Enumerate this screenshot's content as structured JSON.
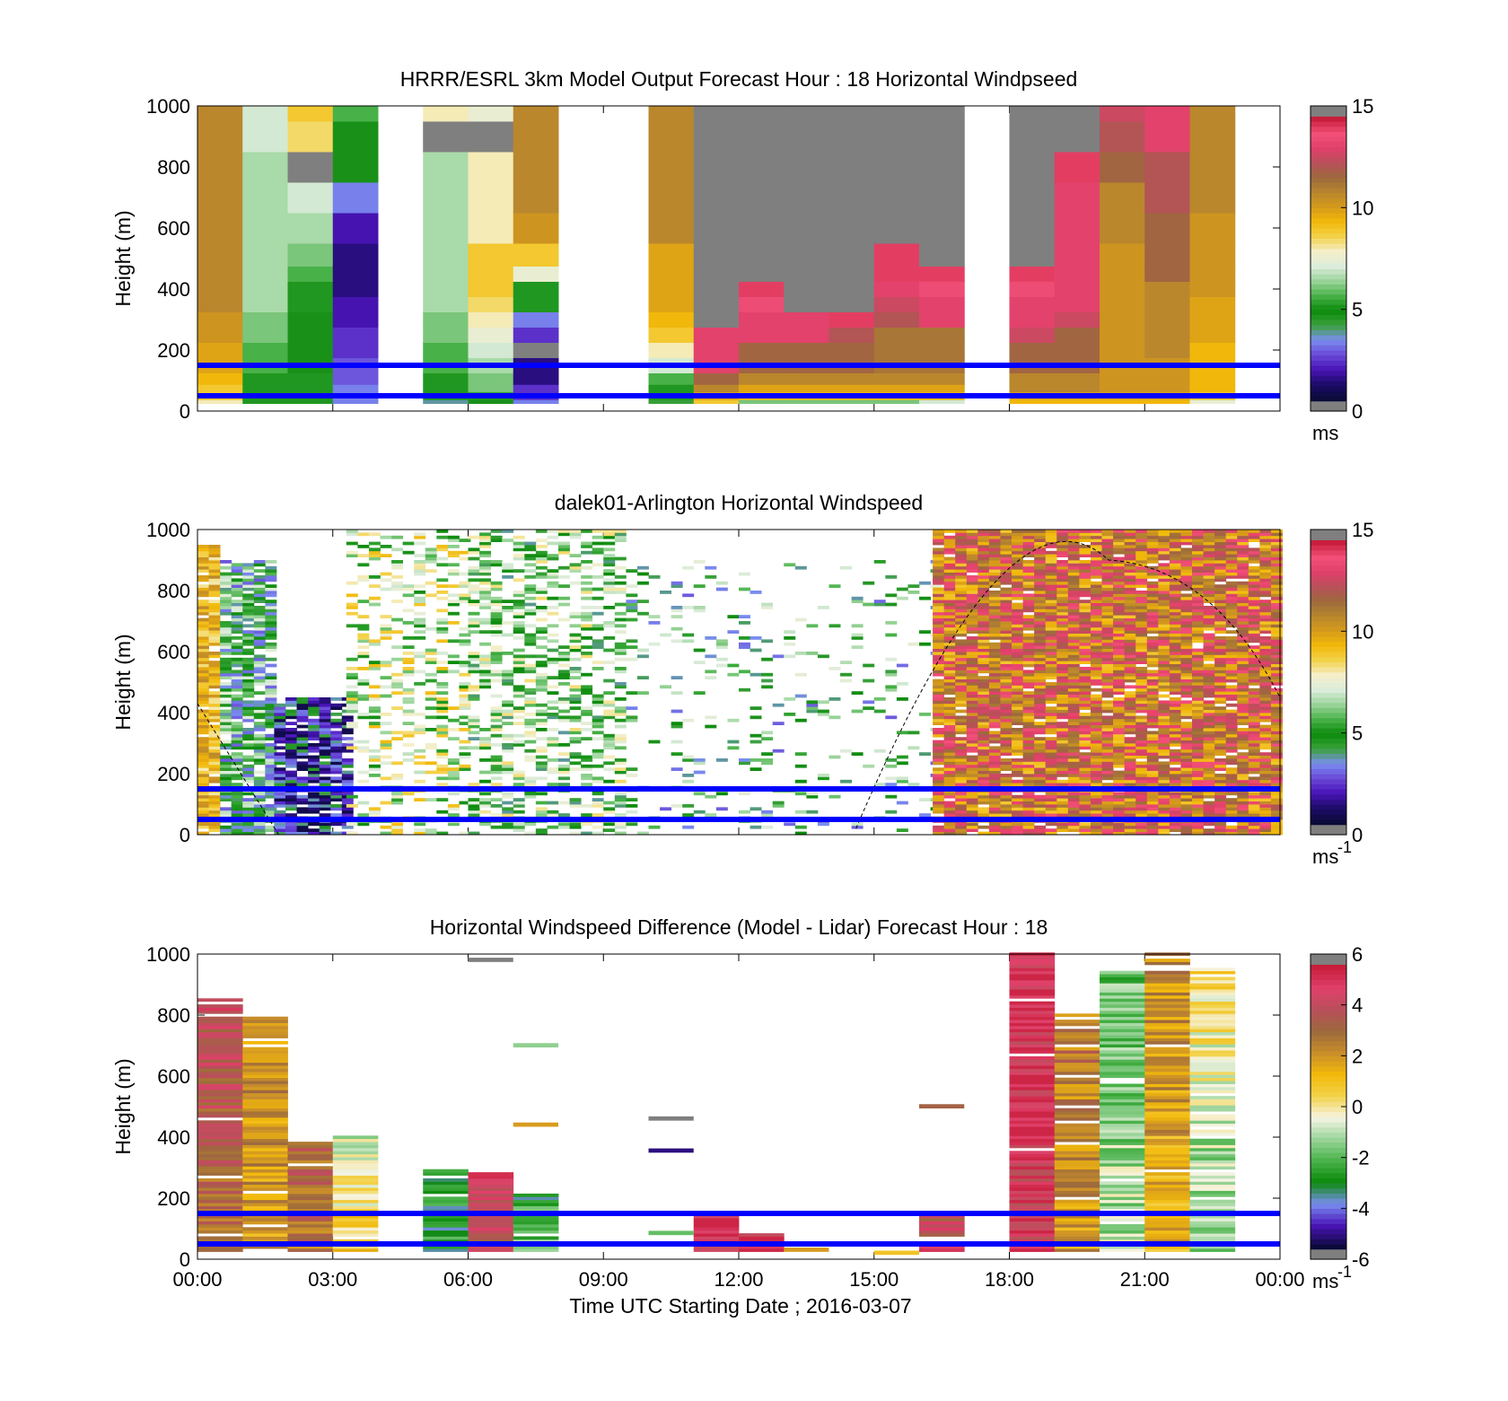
{
  "figure": {
    "xlabel": "Time UTC  Starting Date ; 2016-03-07",
    "x_tick_labels": [
      "00:00",
      "03:00",
      "06:00",
      "09:00",
      "12:00",
      "15:00",
      "18:00",
      "21:00",
      "00:00"
    ],
    "x_ticks_hours": [
      0,
      3,
      6,
      9,
      12,
      15,
      18,
      21,
      24
    ],
    "reference_lines_color": "#0000ff",
    "reference_lines_height_m": [
      50,
      150
    ],
    "colormap_windspeed": [
      "#7f7f7f",
      "#0b0a3a",
      "#1d0c6a",
      "#4a14b8",
      "#6a4ad8",
      "#7a8ef0",
      "#3aa13a",
      "#0b8a0b",
      "#4ab24a",
      "#9ad49a",
      "#dcecdc",
      "#f5efc8",
      "#f3d24a",
      "#f2b90a",
      "#d69a1a",
      "#b8862e",
      "#9c6a3c",
      "#b8505a",
      "#e0406a",
      "#f25078",
      "#c81e3c",
      "#7f7f7f"
    ],
    "colormap_diff": [
      "#7f7f7f",
      "#0b0a3a",
      "#4a14b8",
      "#7a8ef0",
      "#0b8a0b",
      "#4ab24a",
      "#9ad49a",
      "#f6f4e4",
      "#f3d24a",
      "#f2b90a",
      "#c98e2a",
      "#9c6a3c",
      "#b8505a",
      "#e0406a",
      "#c81e3c",
      "#7f7f7f"
    ]
  },
  "chart_data": [
    {
      "type": "heatmap",
      "title": "HRRR/ESRL 3km Model Output   Forecast Hour : 18 Horizontal Windpseed",
      "ylabel": "Height (m)",
      "xlabel": "",
      "ylim": [
        0,
        1000
      ],
      "xlim_hours": [
        0,
        24
      ],
      "y_tick_labels": [
        "0",
        "200",
        "400",
        "600",
        "800",
        "1000"
      ],
      "colorbar": {
        "ticks": [
          "0",
          "5",
          "10",
          "15"
        ],
        "range": [
          0,
          15
        ],
        "unit": "ms"
      },
      "levels_m": [
        25,
        50,
        75,
        100,
        150,
        200,
        250,
        300,
        350,
        400,
        450,
        500,
        600,
        700,
        800,
        900,
        1000
      ],
      "columns": [
        {
          "hour": 0,
          "values": [
            8,
            9,
            9,
            9.5,
            10,
            10,
            10.5,
            10.5,
            11,
            11,
            11,
            11,
            11,
            11,
            11,
            11,
            11
          ]
        },
        {
          "hour": 1,
          "values": [
            5,
            5,
            5,
            5,
            5.5,
            5.5,
            6,
            6,
            6.5,
            6.5,
            6.5,
            6.5,
            6.5,
            6.5,
            6.5,
            7,
            7
          ]
        },
        {
          "hour": 2,
          "values": [
            5,
            5,
            5,
            5,
            4.5,
            4.5,
            4.5,
            4.5,
            5,
            5,
            5.5,
            6,
            6.5,
            7,
            0,
            8.5,
            9
          ]
        },
        {
          "hour": 3,
          "values": [
            3,
            3,
            3,
            2.5,
            2.5,
            2,
            2,
            1.5,
            1.5,
            1,
            1,
            1,
            1.5,
            3,
            4.5,
            4.5,
            5.5
          ]
        },
        {
          "hour": 5,
          "values": [
            3.5,
            5,
            5,
            5,
            5.5,
            5.5,
            6,
            6,
            6.5,
            6.5,
            6.5,
            6.5,
            6.5,
            6.5,
            6.5,
            0,
            8
          ]
        },
        {
          "hour": 6,
          "values": [
            4.5,
            5,
            6,
            6,
            6.5,
            7,
            7.5,
            8,
            8.5,
            9,
            9,
            9,
            8,
            8,
            8,
            0,
            7.5
          ]
        },
        {
          "hour": 7,
          "values": [
            3,
            2,
            2,
            1,
            1,
            0,
            2,
            3,
            5,
            5,
            7.5,
            9,
            10.5,
            11,
            11,
            11,
            11
          ]
        },
        {
          "hour": 10,
          "values": [
            4,
            5,
            5,
            5.5,
            7,
            8,
            9,
            9.5,
            10,
            10,
            10,
            10,
            11,
            11,
            11,
            11,
            11
          ]
        },
        {
          "hour": 11,
          "values": [
            9,
            10,
            11,
            12,
            13.5,
            13.5,
            13.5,
            0,
            0,
            0,
            0,
            0,
            0,
            0,
            0,
            0,
            0
          ]
        },
        {
          "hour": 12,
          "values": [
            6,
            9.5,
            10,
            11,
            12,
            12,
            13.5,
            13.5,
            14,
            14.5,
            0,
            0,
            0,
            0,
            0,
            0,
            0
          ]
        },
        {
          "hour": 13,
          "values": [
            6,
            9.5,
            10,
            11,
            12,
            12,
            13.5,
            13.5,
            0,
            0,
            0,
            0,
            0,
            0,
            0,
            0,
            0
          ]
        },
        {
          "hour": 14,
          "values": [
            6,
            9.5,
            10,
            11,
            12,
            12,
            12.5,
            14.5,
            0,
            0,
            0,
            0,
            0,
            0,
            0,
            0,
            0
          ]
        },
        {
          "hour": 15,
          "values": [
            6,
            9.5,
            10,
            11,
            11.5,
            11.5,
            11.5,
            12.5,
            13,
            13.5,
            14.5,
            14.5,
            0,
            0,
            0,
            0,
            0
          ]
        },
        {
          "hour": 16,
          "values": [
            7,
            9.5,
            10,
            11,
            11.5,
            11.5,
            11.5,
            13.5,
            13.5,
            14,
            14.5,
            0,
            0,
            0,
            0,
            0,
            0
          ]
        },
        {
          "hour": 18,
          "values": [
            9.5,
            10,
            11,
            11,
            12,
            12,
            13,
            13.5,
            13.5,
            14,
            14.5,
            0,
            0,
            0,
            0,
            0,
            0
          ]
        },
        {
          "hour": 19,
          "values": [
            9.5,
            10,
            11,
            11,
            12,
            12,
            12,
            13,
            13.5,
            13.5,
            13.5,
            13.5,
            13.5,
            13.5,
            14.5,
            0,
            0
          ]
        },
        {
          "hour": 20,
          "values": [
            9.5,
            10,
            10.5,
            10.5,
            10.5,
            10.5,
            10.5,
            10.5,
            10.5,
            10.5,
            10.5,
            10.5,
            11,
            11,
            12,
            12.5,
            13
          ]
        },
        {
          "hour": 21,
          "values": [
            9.5,
            10,
            10.5,
            10.5,
            10.5,
            11,
            11,
            11,
            11,
            11,
            12,
            12,
            12,
            12.5,
            12.5,
            13.5,
            13.5
          ]
        },
        {
          "hour": 22,
          "values": [
            7.5,
            9,
            9.5,
            9.5,
            9.5,
            9.5,
            10,
            10,
            10,
            10.5,
            10.5,
            10.5,
            10.5,
            11,
            11,
            11,
            11
          ]
        }
      ]
    },
    {
      "type": "heatmap",
      "title": "dalek01-Arlington  Horizontal Windspeed",
      "ylabel": "Height (m)",
      "xlabel": "",
      "ylim": [
        0,
        1000
      ],
      "xlim_hours": [
        0,
        24
      ],
      "y_tick_labels": [
        "0",
        "200",
        "400",
        "600",
        "800",
        "1000"
      ],
      "colorbar": {
        "ticks": [
          "0",
          "5",
          "10",
          "15"
        ],
        "range": [
          0,
          15
        ],
        "unit": "ms",
        "unit_superscript": "-1"
      },
      "overlay_curve": {
        "style": "dashed",
        "color": "#000000",
        "description_points_hours_m": [
          [
            0,
            430
          ],
          [
            1.8,
            0
          ],
          [
            14.6,
            20
          ],
          [
            20.2,
            900
          ],
          [
            24,
            450
          ]
        ]
      },
      "regions": [
        {
          "hour_start": 0,
          "hour_end": 0.5,
          "height_start_m": 0,
          "height_end_m": 950,
          "typical_speed": 9,
          "coverage": 0.9
        },
        {
          "hour_start": 0.5,
          "hour_end": 1.7,
          "height_start_m": 0,
          "height_end_m": 900,
          "typical_speed": 5,
          "coverage": 0.85
        },
        {
          "hour_start": 1.7,
          "hour_end": 3.3,
          "height_start_m": 0,
          "height_end_m": 450,
          "typical_speed": 2,
          "coverage": 0.85
        },
        {
          "hour_start": 3.3,
          "hour_end": 6.0,
          "height_start_m": 0,
          "height_end_m": 1000,
          "typical_speed": 7,
          "coverage": 0.35
        },
        {
          "hour_start": 6.0,
          "hour_end": 9.5,
          "height_start_m": 0,
          "height_end_m": 1000,
          "typical_speed": 6,
          "coverage": 0.45
        },
        {
          "hour_start": 9.5,
          "hour_end": 16.3,
          "height_start_m": 0,
          "height_end_m": 900,
          "typical_speed": 5,
          "coverage": 0.12
        },
        {
          "hour_start": 16.3,
          "hour_end": 24,
          "height_start_m": 0,
          "height_end_m": 1000,
          "typical_speed": 11,
          "coverage": 0.95
        }
      ]
    },
    {
      "type": "heatmap",
      "title": "Horizontal Windspeed Difference (Model - Lidar) Forecast Hour : 18",
      "ylabel": "Height (m)",
      "xlabel": "Time UTC  Starting Date ; 2016-03-07",
      "ylim": [
        0,
        1000
      ],
      "xlim_hours": [
        0,
        24
      ],
      "y_tick_labels": [
        "0",
        "200",
        "400",
        "600",
        "800",
        "1000"
      ],
      "colorbar": {
        "ticks": [
          "-6",
          "-4",
          "-2",
          "0",
          "2",
          "4",
          "6"
        ],
        "range": [
          -6,
          6
        ],
        "unit": "ms",
        "unit_superscript": "-1"
      },
      "columns": [
        {
          "hour": 0,
          "top_m": 850,
          "typical_diff": 3,
          "upper_diff": 4.5
        },
        {
          "hour": 1,
          "top_m": 790,
          "typical_diff": 2,
          "upper_diff": 2.5
        },
        {
          "hour": 2,
          "top_m": 380,
          "typical_diff": 3,
          "upper_diff": 3.5
        },
        {
          "hour": 3,
          "top_m": 400,
          "typical_diff": 1,
          "upper_diff": -1
        },
        {
          "hour": 5,
          "top_m": 290,
          "typical_diff": -3,
          "upper_diff": -3
        },
        {
          "hour": 6,
          "top_m": 290,
          "typical_diff": 4,
          "upper_diff": 5
        },
        {
          "hour": 7,
          "top_m": 210,
          "typical_diff": -2,
          "upper_diff": -3
        },
        {
          "hour": 11,
          "top_m": 150,
          "typical_diff": 5,
          "upper_diff": 5.5
        },
        {
          "hour": 12,
          "top_m": 80,
          "typical_diff": 5,
          "upper_diff": 5.5
        },
        {
          "hour": 16,
          "top_m": 140,
          "typical_diff": 4.5,
          "upper_diff": 4
        },
        {
          "hour": 18,
          "top_m": 1000,
          "typical_diff": 5,
          "upper_diff": 5.5
        },
        {
          "hour": 19,
          "top_m": 800,
          "typical_diff": 2,
          "upper_diff": 3
        },
        {
          "hour": 20,
          "top_m": 940,
          "typical_diff": -1,
          "upper_diff": -2
        },
        {
          "hour": 21,
          "top_m": 1000,
          "typical_diff": 1.5,
          "upper_diff": 2.5
        },
        {
          "hour": 22,
          "top_m": 960,
          "typical_diff": -2,
          "upper_diff": 0.5
        }
      ],
      "isolated_segments": [
        {
          "hour": 6,
          "height_m": 980,
          "value": 6
        },
        {
          "hour": 7,
          "height_m": 700,
          "value": -1.5
        },
        {
          "hour": 7,
          "height_m": 440,
          "value": 2
        },
        {
          "hour": 10,
          "height_m": 460,
          "value": 6
        },
        {
          "hour": 10,
          "height_m": 355,
          "value": -5.5
        },
        {
          "hour": 10,
          "height_m": 85,
          "value": -2
        },
        {
          "hour": 16,
          "height_m": 500,
          "value": 3.5
        },
        {
          "hour": 13,
          "height_m": 30,
          "value": 2
        },
        {
          "hour": 15,
          "height_m": 20,
          "value": 1
        }
      ]
    }
  ]
}
